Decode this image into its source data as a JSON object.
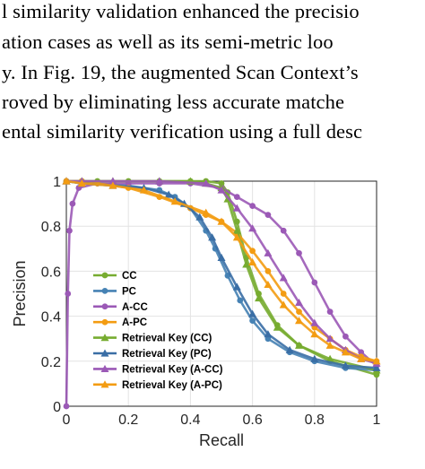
{
  "paragraph": {
    "lines": [
      "l similarity validation enhanced the precisio",
      "ation cases as well as its semi-metric loo",
      "y. In Fig. 19, the augmented Scan Context’s",
      "roved by eliminating less accurate matche",
      "ental similarity verification using a full desc"
    ]
  },
  "chart_data": {
    "type": "line",
    "xlabel": "Recall",
    "ylabel": "Precision",
    "xlim": [
      0,
      1
    ],
    "ylim": [
      0,
      1
    ],
    "xticks": [
      "0",
      "0.2",
      "0.4",
      "0.6",
      "0.8",
      "1"
    ],
    "yticks": [
      "0",
      "0.2",
      "0.4",
      "0.6",
      "0.8",
      "1"
    ],
    "grid": true,
    "legend_position": "lower-left",
    "series": [
      {
        "name": "CC",
        "color": "#77AC30",
        "marker": "circle",
        "x": [
          0.0,
          0.05,
          0.1,
          0.2,
          0.3,
          0.4,
          0.45,
          0.5,
          0.52,
          0.55,
          0.58,
          0.62,
          0.68,
          0.75,
          0.85,
          1.0
        ],
        "y": [
          1.0,
          1.0,
          1.0,
          1.0,
          1.0,
          1.0,
          1.0,
          0.99,
          0.95,
          0.82,
          0.66,
          0.5,
          0.36,
          0.27,
          0.2,
          0.14
        ]
      },
      {
        "name": "PC",
        "color": "#4682B4",
        "marker": "circle",
        "x": [
          0.0,
          0.05,
          0.1,
          0.2,
          0.3,
          0.35,
          0.4,
          0.45,
          0.48,
          0.52,
          0.56,
          0.6,
          0.65,
          0.72,
          0.8,
          0.9,
          1.0
        ],
        "y": [
          1.0,
          0.99,
          0.99,
          0.98,
          0.96,
          0.93,
          0.88,
          0.78,
          0.7,
          0.58,
          0.47,
          0.38,
          0.3,
          0.24,
          0.2,
          0.17,
          0.16
        ]
      },
      {
        "name": "A-CC",
        "color": "#9B59B6",
        "marker": "circle",
        "x": [
          0.0,
          0.005,
          0.01,
          0.02,
          0.04,
          0.1,
          0.2,
          0.3,
          0.4,
          0.5,
          0.55,
          0.6,
          0.65,
          0.7,
          0.75,
          0.8,
          0.85,
          0.9,
          0.95,
          1.0
        ],
        "y": [
          0.0,
          0.5,
          0.78,
          0.9,
          0.97,
          0.99,
          0.99,
          0.99,
          0.99,
          0.97,
          0.93,
          0.89,
          0.85,
          0.78,
          0.68,
          0.55,
          0.42,
          0.31,
          0.24,
          0.18
        ]
      },
      {
        "name": "A-PC",
        "color": "#F39C12",
        "marker": "circle",
        "x": [
          0.0,
          0.05,
          0.1,
          0.2,
          0.3,
          0.4,
          0.45,
          0.5,
          0.55,
          0.6,
          0.65,
          0.7,
          0.75,
          0.8,
          0.85,
          0.9,
          0.95,
          1.0
        ],
        "y": [
          1.0,
          1.0,
          0.99,
          0.97,
          0.93,
          0.88,
          0.85,
          0.82,
          0.77,
          0.69,
          0.6,
          0.5,
          0.42,
          0.35,
          0.3,
          0.25,
          0.22,
          0.2
        ]
      },
      {
        "name": "Retrieval Key (CC)",
        "color": "#77AC30",
        "marker": "triangle",
        "x": [
          0.0,
          0.05,
          0.15,
          0.3,
          0.4,
          0.45,
          0.5,
          0.52,
          0.55,
          0.58,
          0.62,
          0.68,
          0.75,
          0.85,
          1.0
        ],
        "y": [
          1.0,
          1.0,
          1.0,
          1.0,
          1.0,
          0.99,
          0.97,
          0.92,
          0.78,
          0.63,
          0.48,
          0.35,
          0.27,
          0.21,
          0.16
        ]
      },
      {
        "name": "Retrieval Key (PC)",
        "color": "#3A6EA5",
        "marker": "triangle",
        "x": [
          0.0,
          0.05,
          0.15,
          0.25,
          0.33,
          0.38,
          0.43,
          0.47,
          0.5,
          0.55,
          0.6,
          0.65,
          0.72,
          0.8,
          0.9,
          1.0
        ],
        "y": [
          1.0,
          0.99,
          0.98,
          0.97,
          0.94,
          0.9,
          0.84,
          0.75,
          0.66,
          0.53,
          0.41,
          0.32,
          0.25,
          0.21,
          0.18,
          0.17
        ]
      },
      {
        "name": "Retrieval Key (A-CC)",
        "color": "#9B59B6",
        "marker": "triangle",
        "x": [
          0.0,
          0.05,
          0.15,
          0.3,
          0.45,
          0.5,
          0.55,
          0.6,
          0.65,
          0.7,
          0.75,
          0.8,
          0.85,
          0.9,
          0.95,
          1.0
        ],
        "y": [
          1.0,
          1.0,
          1.0,
          1.0,
          0.99,
          0.96,
          0.88,
          0.79,
          0.68,
          0.57,
          0.46,
          0.37,
          0.3,
          0.25,
          0.21,
          0.19
        ]
      },
      {
        "name": "Retrieval Key (A-PC)",
        "color": "#F39C12",
        "marker": "triangle",
        "x": [
          0.0,
          0.05,
          0.15,
          0.25,
          0.35,
          0.45,
          0.5,
          0.55,
          0.6,
          0.65,
          0.7,
          0.75,
          0.8,
          0.85,
          0.9,
          0.95,
          1.0
        ],
        "y": [
          1.0,
          0.99,
          0.98,
          0.96,
          0.91,
          0.86,
          0.82,
          0.75,
          0.64,
          0.54,
          0.45,
          0.38,
          0.32,
          0.27,
          0.24,
          0.21,
          0.2
        ]
      }
    ]
  }
}
